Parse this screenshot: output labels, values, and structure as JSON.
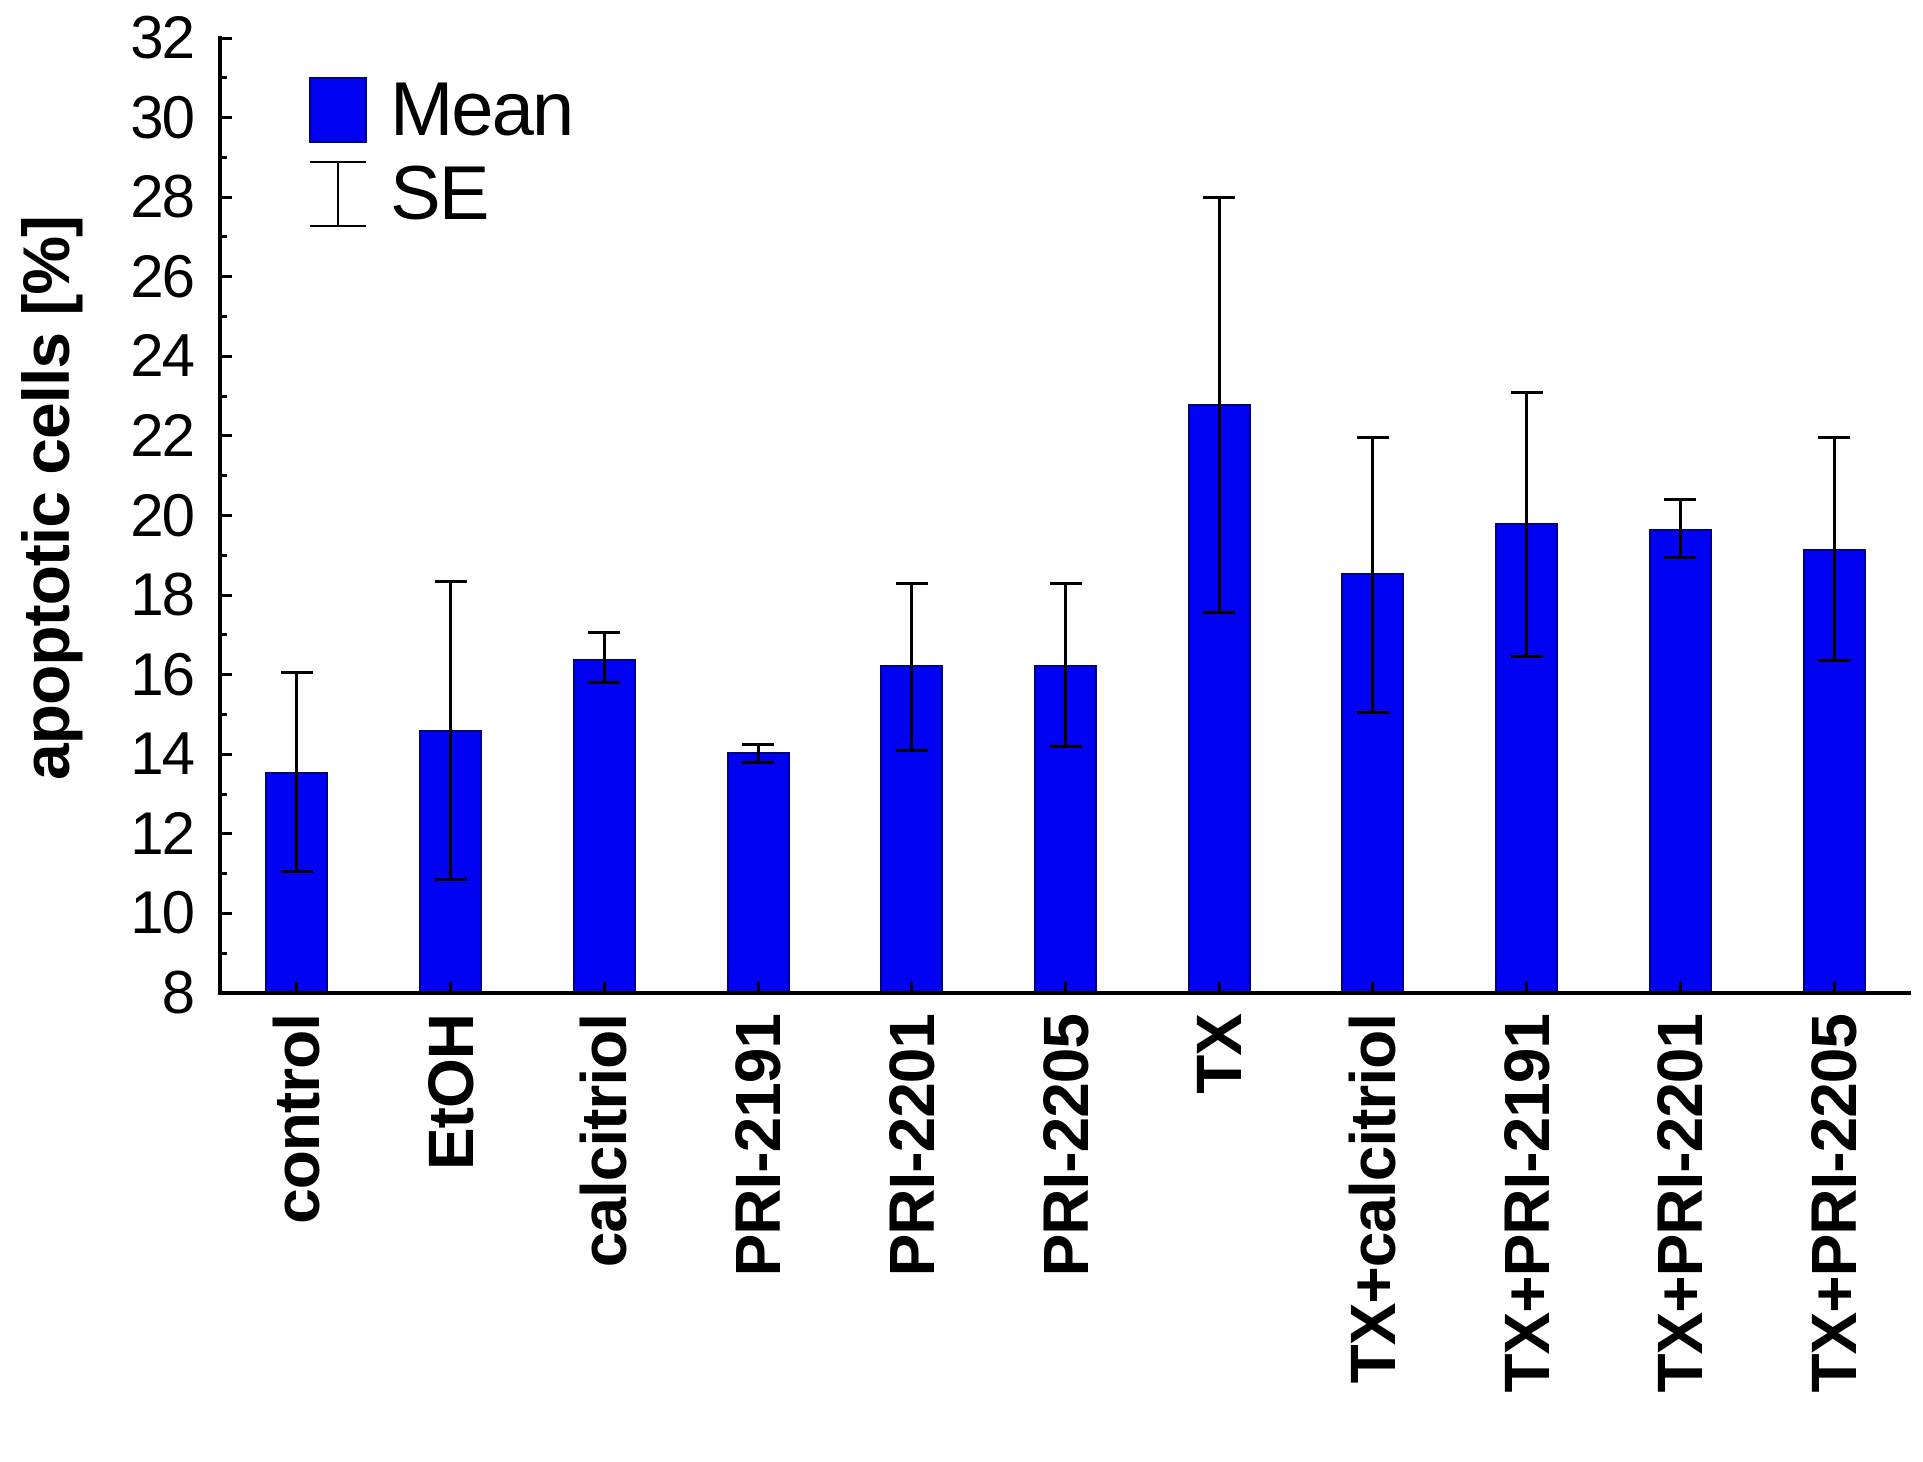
{
  "legend": {
    "mean_label": "Mean",
    "se_label": "SE"
  },
  "y_axis": {
    "label": "apoptotic cells [%]"
  },
  "chart_data": {
    "type": "bar",
    "title": "",
    "xlabel": "",
    "ylabel": "apoptotic cells [%]",
    "ylim": [
      8,
      32
    ],
    "ytick_step": 2,
    "grid": false,
    "legend_position": "top-left-inside",
    "legend_entries": [
      "Mean",
      "SE"
    ],
    "bar_color": "#0202F2",
    "bar_border_color": "#000088",
    "error_color": "#000000",
    "categories": [
      "control",
      "EtOH",
      "calcitriol",
      "PRI-2191",
      "PRI-2201",
      "PRI-2205",
      "TX",
      "TX+calcitriol",
      "TX+PRI-2191",
      "TX+PRI-2201",
      "TX+PRI-2205"
    ],
    "series": [
      {
        "name": "Mean",
        "values": [
          13.55,
          14.6,
          16.4,
          14.05,
          16.25,
          16.25,
          22.8,
          18.55,
          19.8,
          19.65,
          19.15
        ],
        "se_low": [
          11.05,
          10.85,
          15.8,
          13.8,
          14.1,
          14.2,
          17.55,
          15.05,
          16.45,
          18.95,
          16.35
        ],
        "se_high": [
          16.05,
          18.35,
          17.05,
          14.25,
          18.3,
          18.3,
          28.0,
          21.95,
          23.1,
          20.4,
          21.95
        ]
      }
    ]
  }
}
